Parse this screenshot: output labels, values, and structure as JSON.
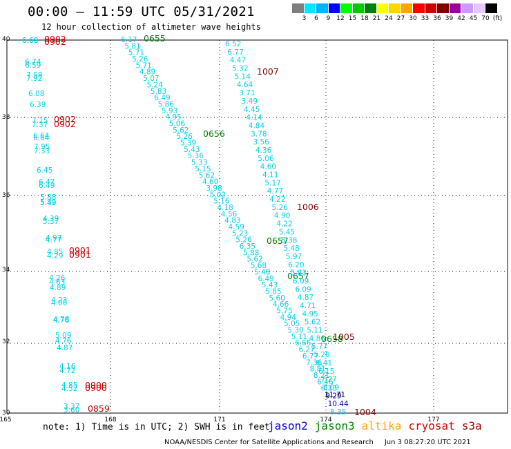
{
  "title": "00:00 — 11:59 UTC 05/31/2021",
  "subtitle": "12 hour collection of altimeter wave heights",
  "scale": {
    "colors": [
      "#7f7f7f",
      "#00e8ff",
      "#00b3ff",
      "#0000ff",
      "#00ff00",
      "#00cc00",
      "#008000",
      "#ffff00",
      "#ffd700",
      "#ffa500",
      "#ff0000",
      "#cc0000",
      "#800000",
      "#990099",
      "#cc99ff",
      "#e6c8ff",
      "#000000"
    ],
    "labels": [
      "3",
      "6",
      "9",
      "12",
      "15",
      "18",
      "21",
      "24",
      "27",
      "30",
      "33",
      "36",
      "39",
      "42",
      "45",
      "70",
      "(ft)"
    ]
  },
  "axes": {
    "x_ticks": [
      "165",
      "168",
      "171",
      "174",
      "177"
    ],
    "y_ticks": [
      "40",
      "38",
      "36",
      "34",
      "32",
      "30"
    ]
  },
  "tracks": {
    "t1_values": [
      "6.68",
      "6.69",
      "6.74",
      "6.59",
      "7.58",
      "7.92",
      "6.08",
      "6.39",
      "7.15",
      "7.37",
      "6.64",
      "6.64",
      "7.95",
      "7.33",
      "6.45",
      "6.47",
      "6.49",
      "5.88",
      "5.82",
      "5.49",
      "4.39",
      "5.37",
      "4.97",
      "4.77",
      "4.85",
      "4.29",
      "4.26",
      "4.63",
      "4.89",
      "4.23",
      "4.06",
      "4.78",
      "4.76",
      "5.09",
      "4.76",
      "4.87",
      "4.16",
      "4.72",
      "4.85",
      "4.52",
      "3.37",
      "3.60"
    ],
    "t1_passes": [
      "0902",
      "0902",
      "0902",
      "0902",
      "0901",
      "0901",
      "0900",
      "0900",
      "0859"
    ],
    "t2_values": [
      "6.17",
      "5.81",
      "5.71",
      "5.26",
      "5.71",
      "4.89",
      "5.07",
      "5.24",
      "5.83",
      "6.49",
      "5.86",
      "5.93",
      "4.95",
      "5.06",
      "5.62",
      "5.26",
      "5.39",
      "5.43",
      "5.36",
      "5.33",
      "5.15",
      "5.62",
      "4.60",
      "3.98",
      "5.02",
      "5.16",
      "4.18",
      "4.56",
      "4.83",
      "4.59",
      "5.23",
      "5.26",
      "6.35",
      "5.88",
      "5.62",
      "5.68",
      "5.48",
      "6.49",
      "5.43",
      "5.85",
      "5.60",
      "4.66",
      "5.75",
      "4.94",
      "5.05",
      "5.30",
      "5.11",
      "6.65",
      "6.27",
      "6.77",
      "7.36",
      "8.81",
      "8.21",
      "6.46",
      "6.13",
      "11.71"
    ],
    "t2_passes": [
      "0655",
      "0656",
      "0657",
      "0657",
      "0658"
    ],
    "t3_values": [
      "6.52",
      "6.77",
      "4.47",
      "5.32",
      "5.14",
      "4.64",
      "3.71",
      "3.49",
      "4.45",
      "4.14",
      "4.84",
      "3.78",
      "3.56",
      "4.36",
      "5.06",
      "4.60",
      "4.11",
      "5.17",
      "4.77",
      "4.22",
      "5.26",
      "4.90",
      "4.22",
      "5.45",
      "5.38",
      "5.48",
      "5.97",
      "6.20",
      "5.83",
      "6.09",
      "6.09",
      "4.87",
      "4.71",
      "4.95",
      "5.62",
      "5.11",
      "4.86",
      "5.77",
      "5.28",
      "6.41",
      "6.15",
      "7.27",
      "8.09",
      "9.29",
      "10.44",
      "8.35"
    ],
    "t3_passes": [
      "1007",
      "1006",
      "1005",
      "1004"
    ]
  },
  "footnote": "note: 1) Time is in UTC; 2) SWH is in feet",
  "legend": [
    {
      "label": "jason2",
      "color": "#0000cc"
    },
    {
      "label": "jason3",
      "color": "#008000"
    },
    {
      "label": "altika",
      "color": "#ffa500"
    },
    {
      "label": "cryosat",
      "color": "#cc0000"
    },
    {
      "label": "s3a",
      "color": "#990000"
    }
  ],
  "credit": "NOAA/NESDIS Center for Satellite Applications and Research",
  "timestamp": "Jun  3 08:27:20 UTC 2021"
}
